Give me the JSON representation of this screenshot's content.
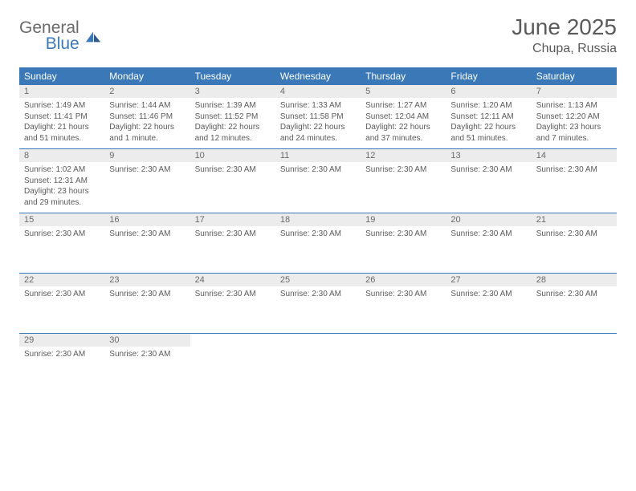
{
  "brand": {
    "general": "General",
    "blue": "Blue"
  },
  "title": "June 2025",
  "location": "Chupa, Russia",
  "weekdays": [
    "Sunday",
    "Monday",
    "Tuesday",
    "Wednesday",
    "Thursday",
    "Friday",
    "Saturday"
  ],
  "colors": {
    "header_bg": "#3a78b8",
    "daynum_bg": "#ececec",
    "text": "#5a5a5a",
    "brand_gray": "#6a6a6a",
    "brand_blue": "#3a78b8"
  },
  "weeks": [
    {
      "days": [
        {
          "num": "1",
          "lines": [
            "Sunrise: 1:49 AM",
            "Sunset: 11:41 PM",
            "Daylight: 21 hours and 51 minutes."
          ]
        },
        {
          "num": "2",
          "lines": [
            "Sunrise: 1:44 AM",
            "Sunset: 11:46 PM",
            "Daylight: 22 hours and 1 minute."
          ]
        },
        {
          "num": "3",
          "lines": [
            "Sunrise: 1:39 AM",
            "Sunset: 11:52 PM",
            "Daylight: 22 hours and 12 minutes."
          ]
        },
        {
          "num": "4",
          "lines": [
            "Sunrise: 1:33 AM",
            "Sunset: 11:58 PM",
            "Daylight: 22 hours and 24 minutes."
          ]
        },
        {
          "num": "5",
          "lines": [
            "Sunrise: 1:27 AM",
            "Sunset: 12:04 AM",
            "Daylight: 22 hours and 37 minutes."
          ]
        },
        {
          "num": "6",
          "lines": [
            "Sunrise: 1:20 AM",
            "Sunset: 12:11 AM",
            "Daylight: 22 hours and 51 minutes."
          ]
        },
        {
          "num": "7",
          "lines": [
            "Sunrise: 1:13 AM",
            "Sunset: 12:20 AM",
            "Daylight: 23 hours and 7 minutes."
          ]
        }
      ]
    },
    {
      "days": [
        {
          "num": "8",
          "lines": [
            "Sunrise: 1:02 AM",
            "Sunset: 12:31 AM",
            "Daylight: 23 hours and 29 minutes."
          ]
        },
        {
          "num": "9",
          "lines": [
            "Sunrise: 2:30 AM"
          ]
        },
        {
          "num": "10",
          "lines": [
            "Sunrise: 2:30 AM"
          ]
        },
        {
          "num": "11",
          "lines": [
            "Sunrise: 2:30 AM"
          ]
        },
        {
          "num": "12",
          "lines": [
            "Sunrise: 2:30 AM"
          ]
        },
        {
          "num": "13",
          "lines": [
            "Sunrise: 2:30 AM"
          ]
        },
        {
          "num": "14",
          "lines": [
            "Sunrise: 2:30 AM"
          ]
        }
      ]
    },
    {
      "days": [
        {
          "num": "15",
          "lines": [
            "Sunrise: 2:30 AM"
          ]
        },
        {
          "num": "16",
          "lines": [
            "Sunrise: 2:30 AM"
          ]
        },
        {
          "num": "17",
          "lines": [
            "Sunrise: 2:30 AM"
          ]
        },
        {
          "num": "18",
          "lines": [
            "Sunrise: 2:30 AM"
          ]
        },
        {
          "num": "19",
          "lines": [
            "Sunrise: 2:30 AM"
          ]
        },
        {
          "num": "20",
          "lines": [
            "Sunrise: 2:30 AM"
          ]
        },
        {
          "num": "21",
          "lines": [
            "Sunrise: 2:30 AM"
          ]
        }
      ]
    },
    {
      "days": [
        {
          "num": "22",
          "lines": [
            "Sunrise: 2:30 AM"
          ]
        },
        {
          "num": "23",
          "lines": [
            "Sunrise: 2:30 AM"
          ]
        },
        {
          "num": "24",
          "lines": [
            "Sunrise: 2:30 AM"
          ]
        },
        {
          "num": "25",
          "lines": [
            "Sunrise: 2:30 AM"
          ]
        },
        {
          "num": "26",
          "lines": [
            "Sunrise: 2:30 AM"
          ]
        },
        {
          "num": "27",
          "lines": [
            "Sunrise: 2:30 AM"
          ]
        },
        {
          "num": "28",
          "lines": [
            "Sunrise: 2:30 AM"
          ]
        }
      ]
    },
    {
      "days": [
        {
          "num": "29",
          "lines": [
            "Sunrise: 2:30 AM"
          ]
        },
        {
          "num": "30",
          "lines": [
            "Sunrise: 2:30 AM"
          ]
        },
        {
          "num": "",
          "lines": []
        },
        {
          "num": "",
          "lines": []
        },
        {
          "num": "",
          "lines": []
        },
        {
          "num": "",
          "lines": []
        },
        {
          "num": "",
          "lines": []
        }
      ]
    }
  ]
}
